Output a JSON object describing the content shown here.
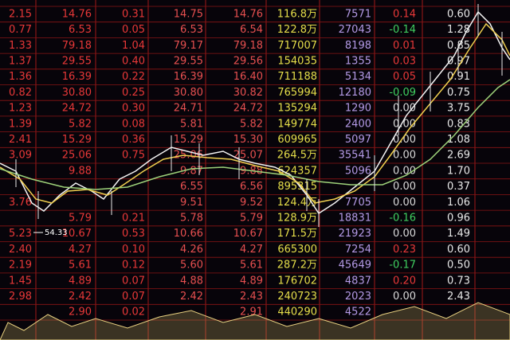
{
  "board": {
    "rows": [
      [
        "2.15",
        "14.76",
        "0.31",
        "14.75",
        "14.76",
        "116.8万",
        "7571",
        "0.14",
        "0.60"
      ],
      [
        "0.77",
        "6.53",
        "0.05",
        "6.53",
        "6.54",
        "122.8万",
        "27043",
        "-0.14",
        "1.28"
      ],
      [
        "1.33",
        "79.18",
        "1.04",
        "79.17",
        "79.18",
        "717007",
        "8198",
        "0.01",
        "0.85"
      ],
      [
        "1.37",
        "29.55",
        "0.40",
        "29.55",
        "29.56",
        "154035",
        "1355",
        "0.03",
        "0.97"
      ],
      [
        "1.36",
        "16.39",
        "0.22",
        "16.39",
        "16.40",
        "711188",
        "5134",
        "0.05",
        "0.91"
      ],
      [
        "0.82",
        "30.80",
        "0.25",
        "30.80",
        "30.82",
        "765994",
        "12180",
        "-0.09",
        "0.75"
      ],
      [
        "1.23",
        "24.72",
        "0.30",
        "24.71",
        "24.72",
        "135294",
        "1290",
        "0.00",
        "3.75"
      ],
      [
        "1.39",
        "5.82",
        "0.08",
        "5.81",
        "5.82",
        "149774",
        "2400",
        "0.00",
        "0.83"
      ],
      [
        "2.41",
        "15.29",
        "0.36",
        "15.29",
        "15.30",
        "609965",
        "5097",
        "0.00",
        "1.08"
      ],
      [
        "3.09",
        "25.06",
        "0.75",
        "25.06",
        "25.07",
        "264.5万",
        "35541",
        "0.00",
        "2.69"
      ],
      [
        null,
        "9.88",
        null,
        "9.87",
        "9.88",
        "624357",
        "5096",
        "0.00",
        "1.70"
      ],
      [
        null,
        null,
        null,
        "6.55",
        "6.56",
        "895315",
        null,
        "0.00",
        "0.37"
      ],
      [
        "3.76",
        null,
        null,
        "9.51",
        "9.52",
        "124.4万",
        "7705",
        "0.00",
        "1.06"
      ],
      [
        null,
        "5.79",
        "0.21",
        "5.78",
        "5.79",
        "128.9万",
        "18831",
        "-0.16",
        "0.96"
      ],
      [
        "5.23",
        "10.67",
        "0.53",
        "10.66",
        "10.67",
        "171.5万",
        "21923",
        "0.00",
        "1.49"
      ],
      [
        "2.40",
        "4.27",
        "0.10",
        "4.26",
        "4.27",
        "665300",
        "7254",
        "0.23",
        "0.60"
      ],
      [
        "2.19",
        "5.61",
        "0.12",
        "5.60",
        "5.61",
        "287.2万",
        "45649",
        "-0.17",
        "0.50"
      ],
      [
        "1.45",
        "4.89",
        "0.07",
        "4.88",
        "4.89",
        "176702",
        "4837",
        "0.20",
        "0.73"
      ],
      [
        "2.98",
        "2.42",
        "0.07",
        "2.42",
        "2.43",
        "240723",
        "2023",
        "0.00",
        "2.43"
      ],
      [
        null,
        "2.90",
        "0.02",
        null,
        "2.91",
        "440290",
        "4522",
        null,
        null
      ]
    ],
    "annotation": "54.33"
  }
}
